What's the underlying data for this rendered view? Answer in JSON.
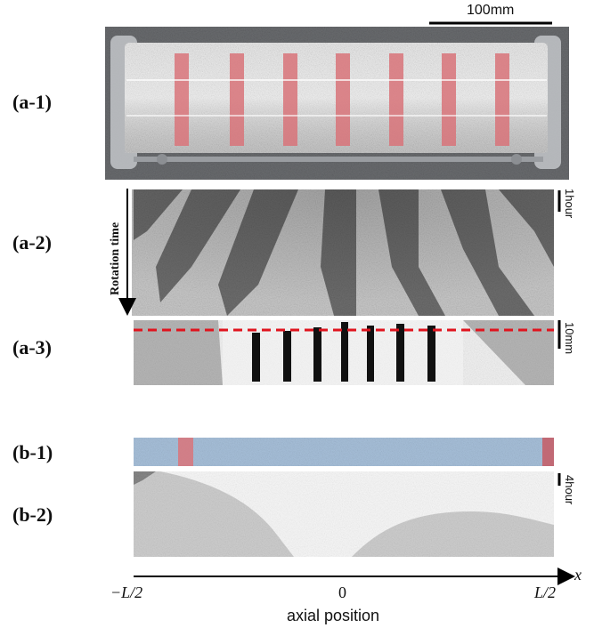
{
  "panels": {
    "a1": "(a-1)",
    "a2": "(a-2)",
    "a3": "(a-3)",
    "b1": "(b-1)",
    "b2": "(b-2)"
  },
  "scale_bars": {
    "top": "100mm",
    "a2": "1hour",
    "a3": "10mm",
    "b2": "4hour"
  },
  "rotation_label": "Rotation time",
  "axis": {
    "var": "x",
    "left": "−L/2",
    "center": "0",
    "right": "L/2",
    "caption": "axial position"
  },
  "colors": {
    "band_red": "#d9747a",
    "tube_blue": "#a9c2dc",
    "dashed_red": "#e0141e"
  }
}
